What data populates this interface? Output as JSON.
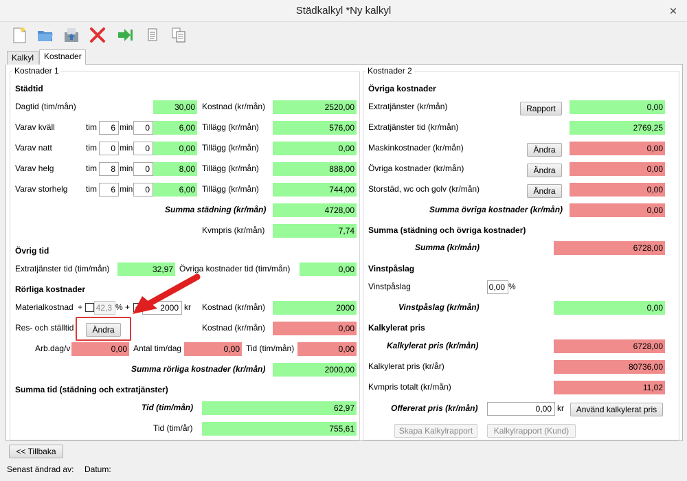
{
  "window": {
    "title": "Städkalkyl *Ny kalkyl",
    "close": "✕"
  },
  "toolbar": {
    "new": "new-document-icon",
    "open": "open-folder-icon",
    "save": "save-icon",
    "delete": "delete-icon",
    "export": "export-icon",
    "report": "report-icon",
    "copy": "copy-icon"
  },
  "tabs": [
    "Kalkyl",
    "Kostnader"
  ],
  "left": {
    "title": "Kostnader 1",
    "stadtid": {
      "heading": "Städtid",
      "dagtid": {
        "label": "Dagtid (tim/mån)",
        "value": "30,00",
        "cost_label": "Kostnad (kr/mån)",
        "cost": "2520,00"
      },
      "rows": [
        {
          "label": "Varav kväll",
          "tim": "6",
          "min": "0",
          "value": "6,00",
          "add_label": "Tillägg (kr/mån)",
          "add": "576,00"
        },
        {
          "label": "Varav natt",
          "tim": "0",
          "min": "0",
          "value": "0,00",
          "add_label": "Tillägg (kr/mån)",
          "add": "0,00"
        },
        {
          "label": "Varav helg",
          "tim": "8",
          "min": "0",
          "value": "8,00",
          "add_label": "Tillägg (kr/mån)",
          "add": "888,00"
        },
        {
          "label": "Varav storhelg",
          "tim": "6",
          "min": "0",
          "value": "6,00",
          "add_label": "Tillägg (kr/mån)",
          "add": "744,00"
        }
      ],
      "tim_label": "tim",
      "min_label": "min",
      "summa_label": "Summa städning (kr/mån)",
      "summa": "4728,00",
      "kvm_label": "Kvmpris (kr/mån)",
      "kvm": "7,74"
    },
    "ovrig_tid": {
      "heading": "Övrig tid",
      "extra_label": "Extratjänster tid (tim/mån)",
      "extra": "32,97",
      "ovriga_label": "Övriga kostnader tid (tim/mån)",
      "ovriga": "0,00"
    },
    "rorliga": {
      "heading": "Rörliga kostnader",
      "material_label": "Materialkostnad",
      "plus1": "+",
      "pct_value": "42,3",
      "pct": "%",
      "plus2": "+",
      "check_mark": "✓",
      "kr_value": "2000",
      "kr": "kr",
      "material_cost_label": "Kostnad (kr/mån)",
      "material_cost": "2000",
      "res_label": "Res- och ställtid",
      "andra": "Ändra",
      "res_cost_label": "Kostnad (kr/mån)",
      "res_cost": "0,00",
      "arb_label": "Arb.dag/v",
      "arb": "0,00",
      "antal_label": "Antal tim/dag",
      "antal": "0,00",
      "tid_label": "Tid (tim/mån)",
      "tid": "0,00",
      "summa_label": "Summa rörliga kostnader (kr/mån)",
      "summa": "2000,00"
    },
    "summa_tid": {
      "heading": "Summa tid (städning och extratjänster)",
      "tid_man_label": "Tid (tim/mån)",
      "tid_man": "62,97",
      "tid_ar_label": "Tid (tim/år)",
      "tid_ar": "755,61"
    }
  },
  "right": {
    "title": "Kostnader 2",
    "ovriga": {
      "heading": "Övriga kostnader",
      "extra_label": "Extratjänster (kr/mån)",
      "rapport": "Rapport",
      "extra": "0,00",
      "extra_tid_label": "Extratjänster tid (kr/mån)",
      "extra_tid": "2769,25",
      "maskin_label": "Maskinkostnader (kr/mån)",
      "maskin": "0,00",
      "ovr_label": "Övriga kostnader (kr/mån)",
      "ovr": "0,00",
      "stor_label": "Storstäd, wc och golv (kr/mån)",
      "stor": "0,00",
      "andra": "Ändra",
      "summa_label": "Summa övriga kostnader (kr/mån)",
      "summa": "0,00"
    },
    "summa_block": {
      "heading": "Summa (städning och övriga kostnader)",
      "label": "Summa (kr/mån)",
      "value": "6728,00"
    },
    "vinst": {
      "heading": "Vinstpåslag",
      "label": "Vinstpåslag",
      "input": "0,00",
      "pct": "%",
      "sum_label": "Vinstpåslag (kr/mån)",
      "sum": "0,00"
    },
    "kalkylerat": {
      "heading": "Kalkylerat pris",
      "man_label": "Kalkylerat pris (kr/mån)",
      "man": "6728,00",
      "ar_label": "Kalkylerat pris (kr/år)",
      "ar": "80736,00",
      "kvm_label": "Kvmpris totalt (kr/mån)",
      "kvm": "11,02",
      "off_label": "Offererat pris (kr/mån)",
      "off": "0,00",
      "kr": "kr",
      "use_btn": "Använd kalkylerat pris",
      "skapa_btn": "Skapa Kalkylrapport",
      "kund_btn": "Kalkylrapport (Kund)"
    }
  },
  "back_button": "<< Tillbaka",
  "status": {
    "changed_by": "Senast ändrad av:",
    "date": "Datum:"
  },
  "colors": {
    "green": "#98fa98",
    "red": "#f08c8c",
    "arrow": "#e02020"
  }
}
